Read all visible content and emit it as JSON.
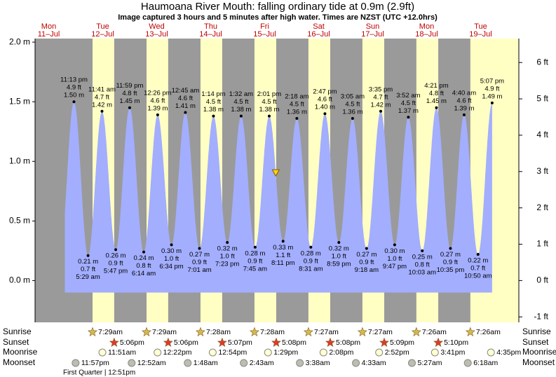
{
  "chart_data": {
    "type": "tide",
    "title": "Haumoana River Mouth: falling  ordinary tide at 0.9m (2.9ft)",
    "subtitle": "Image captured 3 hours and 5 minutes after high water. Times are NZST (UTC +12.0hrs)",
    "days": [
      {
        "weekday": "Mon",
        "date": "11–Jul"
      },
      {
        "weekday": "Tue",
        "date": "12–Jul"
      },
      {
        "weekday": "Wed",
        "date": "13–Jul"
      },
      {
        "weekday": "Thu",
        "date": "14–Jul"
      },
      {
        "weekday": "Fri",
        "date": "15–Jul"
      },
      {
        "weekday": "Sat",
        "date": "16–Jul"
      },
      {
        "weekday": "Sun",
        "date": "17–Jul"
      },
      {
        "weekday": "Mon",
        "date": "18–Jul"
      },
      {
        "weekday": "Tue",
        "date": "19–Jul"
      }
    ],
    "x": [
      "11:13 pm",
      "5:29 am",
      "11:41 am",
      "5:47 pm",
      "11:59 pm",
      "6:14 am",
      "12:26 pm",
      "6:34 pm",
      "12:45 am",
      "7:01 am",
      "1:14 pm",
      "7:23 pm",
      "1:32 am",
      "7:45 am",
      "2:01 pm",
      "8:11 pm",
      "2:18 am",
      "8:31 am",
      "2:47 pm",
      "8:59 pm",
      "3:05 am",
      "9:18 am",
      "3:35 pm",
      "9:47 pm",
      "3:52 am",
      "10:03 am",
      "4:21 pm",
      "10:35 pm",
      "4:40 am",
      "10:50 am",
      "5:07 pm"
    ],
    "values": [
      1.5,
      0.21,
      1.42,
      0.26,
      1.45,
      0.24,
      1.39,
      0.3,
      1.41,
      0.27,
      1.38,
      0.32,
      1.38,
      0.28,
      1.38,
      0.33,
      1.36,
      0.28,
      1.4,
      0.32,
      1.36,
      0.27,
      1.42,
      0.3,
      1.37,
      0.25,
      1.45,
      0.27,
      1.39,
      0.22,
      1.49
    ],
    "value_labels": [
      "1.50 m",
      "0.21 m",
      "1.42 m",
      "0.26 m",
      "1.45 m",
      "0.24 m",
      "1.39 m",
      "0.30 m",
      "1.41 m",
      "0.27 m",
      "1.38 m",
      "0.32 m",
      "1.38 m",
      "0.28 m",
      "1.38 m",
      "0.33 m",
      "1.36 m",
      "0.28 m",
      "1.40 m",
      "0.32 m",
      "1.36 m",
      "0.27 m",
      "1.42 m",
      "0.30 m",
      "1.37 m",
      "0.25 m",
      "1.45 m",
      "0.27 m",
      "1.39 m",
      "0.22 m",
      "1.49 m"
    ],
    "ft_labels": [
      "4.9 ft",
      "0.7 ft",
      "4.7 ft",
      "0.9 ft",
      "4.8 ft",
      "0.8 ft",
      "4.6 ft",
      "1.0 ft",
      "4.6 ft",
      "0.9 ft",
      "4.5 ft",
      "1.0 ft",
      "4.5 ft",
      "0.9 ft",
      "4.5 ft",
      "1.1 ft",
      "4.5 ft",
      "0.9 ft",
      "4.6 ft",
      "1.0 ft",
      "4.5 ft",
      "0.9 ft",
      "4.7 ft",
      "1.0 ft",
      "4.5 ft",
      "0.8 ft",
      "4.8 ft",
      "0.9 ft",
      "4.6 ft",
      "0.7 ft",
      "4.9 ft"
    ],
    "ylim": [
      -0.35,
      2.03
    ],
    "yticks": [
      {
        "value": 2,
        "label": "2.0 m"
      },
      {
        "value": 1.5,
        "label": "1.5 m"
      },
      {
        "value": 1,
        "label": "1.0 m"
      },
      {
        "value": 0.5,
        "label": "0.5 m"
      },
      {
        "value": 0,
        "label": "0.0 m"
      }
    ],
    "y2lim": [
      -1.15,
      6.66
    ],
    "y2ticks": [
      {
        "value": 6,
        "label": "6 ft"
      },
      {
        "value": 5,
        "label": "5 ft"
      },
      {
        "value": 4,
        "label": "4 ft"
      },
      {
        "value": 3,
        "label": "3 ft"
      },
      {
        "value": 2,
        "label": "2 ft"
      },
      {
        "value": 1,
        "label": "1 ft"
      },
      {
        "value": 0,
        "label": "0 ft"
      },
      {
        "value": -1,
        "label": "-1 ft"
      }
    ],
    "now": 0.9,
    "rows": [
      {
        "name": "Sunrise",
        "times": [
          null,
          "7:29am",
          "7:29am",
          "7:28am",
          "7:28am",
          "7:27am",
          "7:27am",
          "7:26am",
          "7:26am"
        ]
      },
      {
        "name": "Sunset",
        "times": [
          null,
          "5:06pm",
          "5:06pm",
          "5:07pm",
          "5:08pm",
          "5:08pm",
          "5:09pm",
          "5:10pm",
          null
        ]
      },
      {
        "name": "Moonrise",
        "times": [
          null,
          "11:51am",
          "12:22pm",
          "12:54pm",
          "1:29pm",
          "2:08pm",
          "2:52pm",
          "3:41pm",
          "4:35pm"
        ]
      },
      {
        "name": "Moonset",
        "times": [
          "11:57pm",
          null,
          "12:52am",
          "1:48am",
          "2:43am",
          "3:38am",
          "4:33am",
          "5:27am",
          "6:18am"
        ]
      }
    ],
    "phase_label": "First Quarter | 12:51pm",
    "colors": {
      "tide": "#a3aeff",
      "night": "#9a9a9a",
      "day": "#ffffc4",
      "header": "#c00000"
    }
  }
}
